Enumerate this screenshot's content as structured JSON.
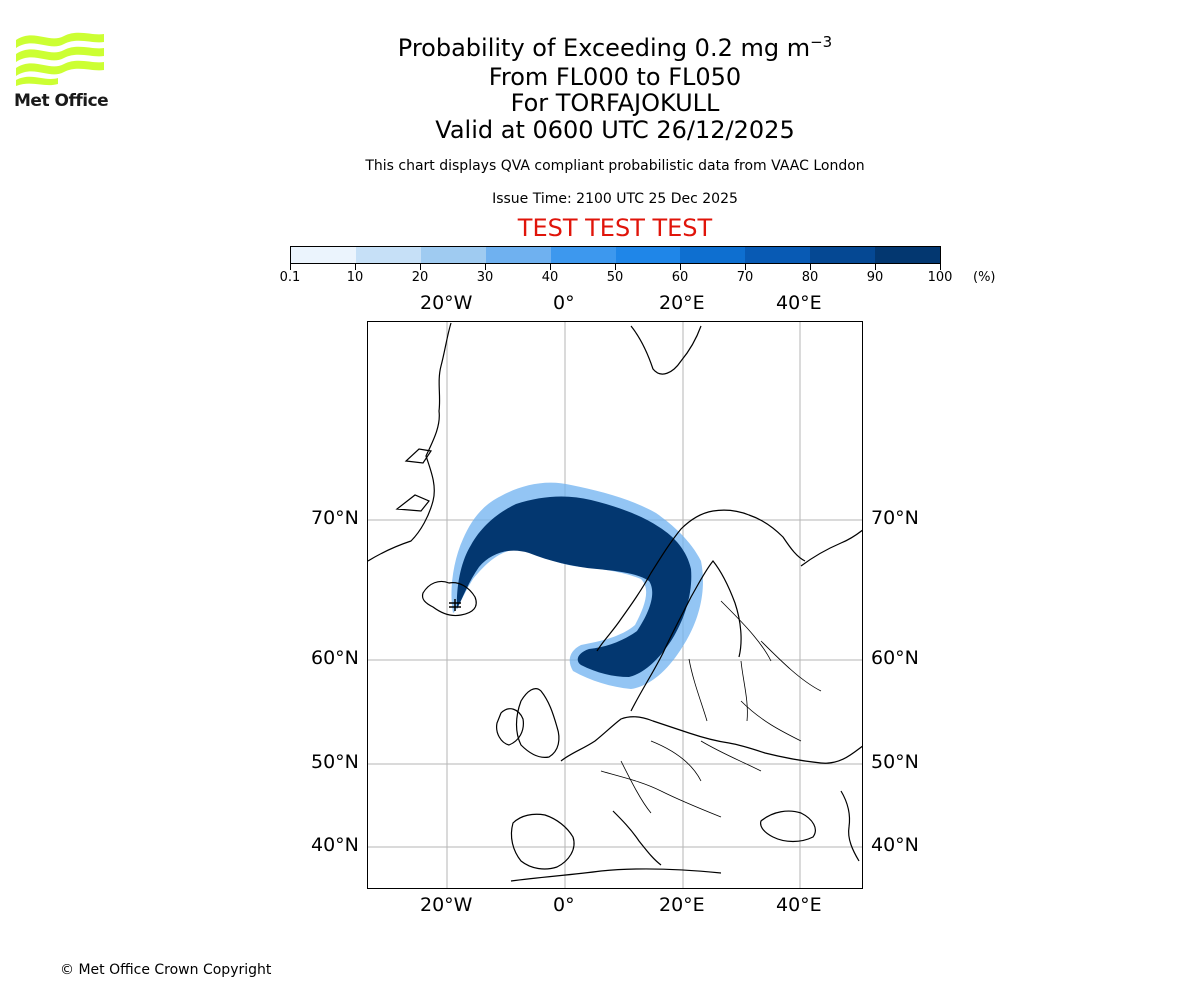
{
  "header": {
    "title_main": "Probability of Exceeding 0.2 mg m",
    "title_sup": "−3",
    "flight_levels": "From FL000 to FL050",
    "volcano": "For TORFAJOKULL",
    "valid_time": "Valid at 0600 UTC 26/12/2025",
    "description": "This chart displays QVA compliant probabilistic data from VAAC London",
    "issue_time": "Issue Time: 2100 UTC 25 Dec 2025",
    "test_banner": "TEST TEST TEST"
  },
  "logo": {
    "text": "Met Office",
    "color": "#ccff33"
  },
  "colorbar": {
    "unit": "(%)",
    "ticks": [
      "0.1",
      "10",
      "20",
      "30",
      "40",
      "50",
      "60",
      "70",
      "80",
      "90",
      "100"
    ],
    "colors": [
      "#ebf4fd",
      "#c6e0f7",
      "#9fcbf1",
      "#6fb1f0",
      "#3d98ee",
      "#1f86e8",
      "#0e6fd0",
      "#085ab4",
      "#054893",
      "#033770"
    ]
  },
  "map": {
    "top_lon_labels": [
      "20°W",
      "0°",
      "20°E",
      "40°E"
    ],
    "bottom_lon_labels": [
      "20°W",
      "0°",
      "20°E",
      "40°E"
    ],
    "left_lat_labels": [
      "70°N",
      "60°N",
      "50°N",
      "40°N"
    ],
    "right_lat_labels": [
      "70°N",
      "60°N",
      "50°N",
      "40°N"
    ],
    "plume_color": "#033770",
    "plume_edge_color": "#6fb1f0"
  },
  "footer": {
    "copyright": "© Met Office Crown Copyright"
  }
}
